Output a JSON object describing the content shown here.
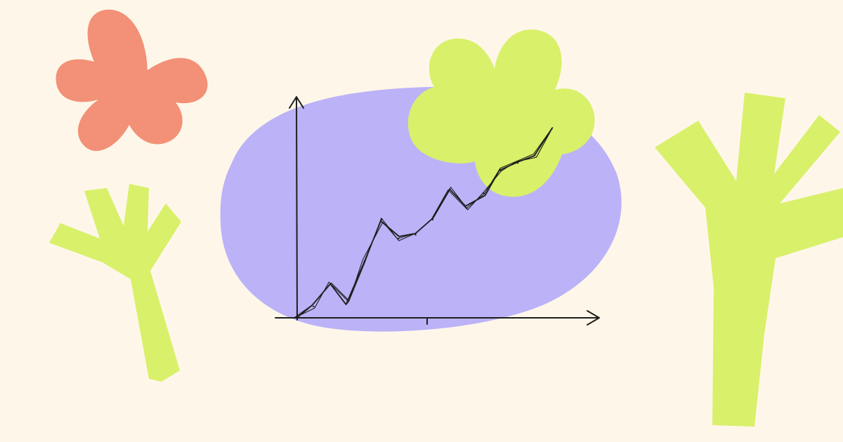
{
  "colors": {
    "background": "#FEF7E9",
    "blob": "#BCB2F8",
    "coral_flower": "#F29177",
    "green": "#D9F06A",
    "ink": "#1E1E1E"
  },
  "chart_data": {
    "type": "line",
    "x": [
      0,
      1,
      2,
      3,
      4,
      5,
      6,
      7,
      8,
      9,
      10,
      11,
      12,
      13,
      14,
      15
    ],
    "series": [
      {
        "values": [
          0,
          6,
          18,
          8,
          30,
          52,
          42,
          44,
          52,
          68,
          58,
          66,
          78,
          82,
          86,
          100
        ]
      }
    ],
    "xlim": [
      0,
      18
    ],
    "ylim": [
      0,
      120
    ],
    "xticks": [],
    "yticks": [],
    "grid": false
  },
  "icons": {
    "coral": "flower-icon",
    "green_top": "flower-icon",
    "plant_left": "sprout-icon",
    "plant_right": "sprout-icon"
  }
}
